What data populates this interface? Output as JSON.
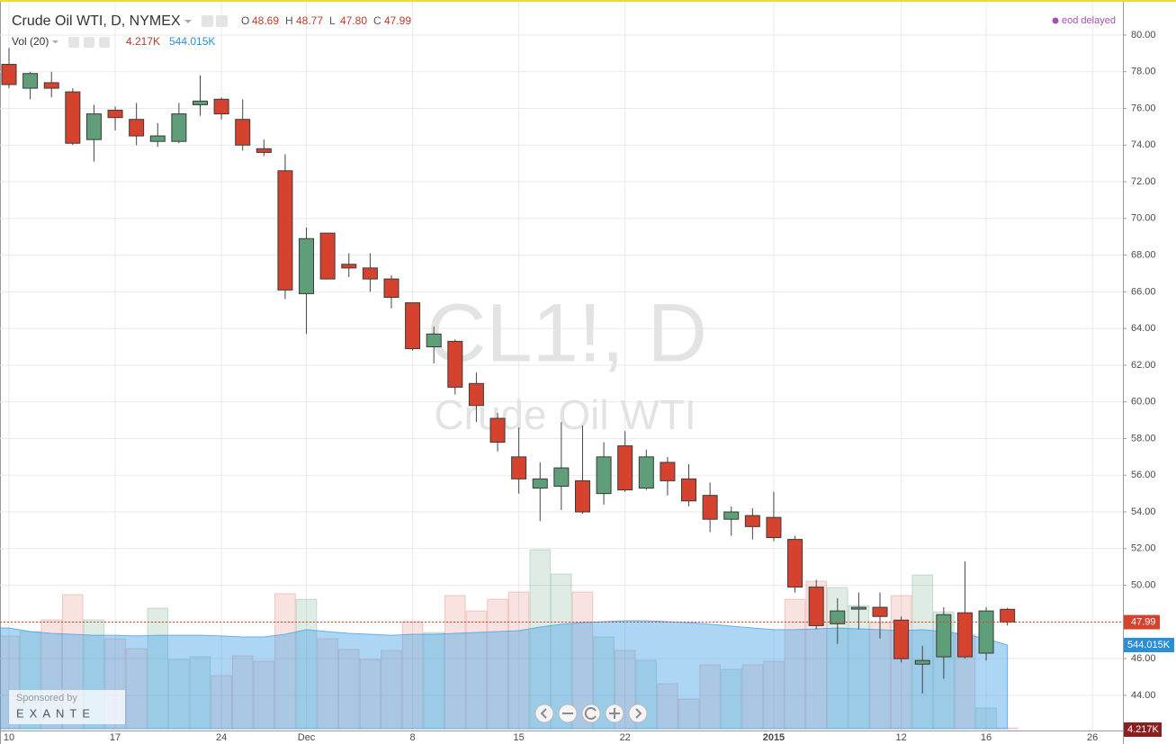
{
  "header": {
    "ohlc": [
      {
        "key": "O",
        "value": "48.69"
      },
      {
        "key": "H",
        "value": "48.77"
      },
      {
        "key": "L",
        "value": "47.80"
      },
      {
        "key": "C",
        "value": "47.99"
      }
    ],
    "status": "eod delayed"
  },
  "watermark": {
    "symbol": "CL1!, D",
    "name": "Crude Oil WTI"
  },
  "sponsor": {
    "label": "Sponsored by",
    "brand": "EXANTE"
  },
  "chart_data": {
    "type": "candlestick",
    "title": "Crude Oil WTI, D, NYMEX",
    "categories": [
      "10",
      null,
      null,
      null,
      null,
      "17",
      null,
      null,
      null,
      null,
      "24",
      null,
      null,
      null,
      "Dec",
      null,
      null,
      null,
      null,
      "8",
      null,
      null,
      null,
      null,
      "15",
      null,
      null,
      null,
      null,
      "22",
      null,
      null,
      null,
      null,
      null,
      null,
      "2015",
      null,
      null,
      null,
      null,
      null,
      "12",
      null,
      null,
      null,
      "16",
      null,
      null,
      null,
      null,
      "26"
    ],
    "open": [
      78.4,
      77.1,
      77.4,
      76.9,
      74.3,
      75.9,
      75.4,
      74.2,
      74.2,
      76.2,
      76.5,
      75.4,
      73.8,
      72.6,
      65.9,
      69.2,
      67.5,
      67.3,
      66.7,
      65.4,
      63.0,
      63.3,
      61.0,
      59.1,
      57.0,
      55.3,
      55.4,
      55.7,
      55.0,
      57.6,
      55.3,
      56.7,
      55.8,
      54.9,
      53.6,
      53.8,
      53.7,
      52.5,
      49.9,
      47.9,
      48.7,
      48.8,
      48.1,
      45.7,
      46.1,
      48.5,
      46.3,
      48.69,
      null,
      null,
      null,
      null
    ],
    "high": [
      79.3,
      78.0,
      78.0,
      77.1,
      76.2,
      76.1,
      76.3,
      75.2,
      76.3,
      77.8,
      76.6,
      76.5,
      74.3,
      73.5,
      69.5,
      69.2,
      68.1,
      68.1,
      66.9,
      65.4,
      64.1,
      63.4,
      61.6,
      59.4,
      58.6,
      56.7,
      58.9,
      58.7,
      57.8,
      58.4,
      57.4,
      57.0,
      56.6,
      55.6,
      54.3,
      54.2,
      55.1,
      52.7,
      50.3,
      49.3,
      49.6,
      49.6,
      48.3,
      46.7,
      48.8,
      51.3,
      48.8,
      48.77,
      null,
      null,
      null,
      null
    ],
    "low": [
      77.1,
      76.5,
      76.6,
      74.0,
      73.1,
      74.8,
      74.0,
      73.9,
      74.1,
      75.6,
      75.4,
      73.7,
      73.4,
      65.6,
      63.7,
      66.7,
      66.8,
      66.0,
      65.1,
      62.8,
      62.1,
      60.4,
      58.9,
      57.3,
      55.0,
      53.5,
      54.1,
      53.9,
      54.4,
      55.1,
      55.2,
      54.9,
      54.3,
      52.9,
      52.7,
      52.5,
      52.4,
      49.6,
      47.6,
      46.8,
      47.6,
      47.1,
      45.8,
      44.1,
      44.9,
      46.0,
      45.9,
      47.8,
      null,
      null,
      null,
      null
    ],
    "close": [
      77.3,
      77.9,
      77.1,
      74.1,
      75.7,
      75.5,
      74.5,
      74.5,
      75.7,
      76.4,
      75.7,
      74.0,
      73.6,
      66.1,
      68.9,
      66.7,
      67.3,
      66.7,
      65.7,
      62.9,
      63.7,
      60.8,
      59.8,
      57.8,
      55.8,
      55.8,
      56.4,
      54.0,
      57.0,
      55.2,
      57.0,
      55.7,
      54.6,
      53.6,
      54.0,
      53.2,
      52.6,
      49.9,
      47.8,
      48.6,
      48.8,
      48.3,
      46.0,
      45.9,
      48.4,
      46.1,
      48.6,
      47.99,
      null,
      null,
      null,
      null
    ],
    "up_color": "#5e9e78",
    "down_color": "#d5432e",
    "volume": {
      "name": "Vol (20)",
      "values": [
        603000,
        632000,
        708000,
        872000,
        708000,
        585000,
        521000,
        784000,
        450000,
        468000,
        345000,
        474000,
        439000,
        878000,
        842000,
        585000,
        515000,
        450000,
        509000,
        696000,
        626000,
        866000,
        766000,
        842000,
        889000,
        1164000,
        1006000,
        889000,
        597000,
        509000,
        445000,
        293000,
        193000,
        415000,
        386000,
        415000,
        439000,
        842000,
        959000,
        918000,
        801000,
        690000,
        866000,
        1000000,
        760000,
        614000,
        135000,
        4217,
        null,
        null,
        null,
        null
      ],
      "value_labels": [
        null,
        null,
        null,
        null,
        null,
        null,
        null,
        null,
        null,
        null,
        null,
        null,
        null,
        null,
        null,
        null,
        null,
        null,
        null,
        null,
        null,
        null,
        null,
        null,
        null,
        null,
        null,
        null,
        null,
        null,
        null,
        null,
        null,
        null,
        null,
        null,
        null,
        null,
        null,
        null,
        null,
        null,
        null,
        null,
        null,
        null,
        null,
        "4.217K",
        null,
        null,
        null,
        null
      ]
    },
    "volume_ma": {
      "color": "#4aa3e8",
      "values": [
        655000,
        632000,
        620000,
        614000,
        608000,
        608000,
        603000,
        608000,
        608000,
        608000,
        603000,
        597000,
        597000,
        614000,
        644000,
        632000,
        620000,
        614000,
        608000,
        614000,
        614000,
        620000,
        626000,
        632000,
        638000,
        661000,
        679000,
        690000,
        696000,
        702000,
        702000,
        696000,
        690000,
        679000,
        667000,
        655000,
        644000,
        644000,
        649000,
        655000,
        649000,
        644000,
        638000,
        644000,
        632000,
        614000,
        585000,
        544015,
        null,
        null,
        null,
        null
      ],
      "value_labels": [
        null,
        null,
        null,
        null,
        null,
        null,
        null,
        null,
        null,
        null,
        null,
        null,
        null,
        null,
        null,
        null,
        null,
        null,
        null,
        null,
        null,
        null,
        null,
        null,
        null,
        null,
        null,
        null,
        null,
        null,
        null,
        null,
        null,
        null,
        null,
        null,
        null,
        null,
        null,
        null,
        null,
        null,
        null,
        null,
        null,
        null,
        null,
        "544.015K",
        null,
        null,
        null,
        null
      ]
    },
    "ylim": [
      42.18,
      81.91
    ],
    "yticks": [
      {
        "value": 44,
        "label": "44.00"
      },
      {
        "value": 46,
        "label": "46.00"
      },
      {
        "value": 48,
        "label": "48.00"
      },
      {
        "value": 50,
        "label": "50.00"
      },
      {
        "value": 52,
        "label": "52.00"
      },
      {
        "value": 54,
        "label": "54.00"
      },
      {
        "value": 56,
        "label": "56.00"
      },
      {
        "value": 58,
        "label": "58.00"
      },
      {
        "value": 60,
        "label": "60.00"
      },
      {
        "value": 62,
        "label": "62.00"
      },
      {
        "value": 64,
        "label": "64.00"
      },
      {
        "value": 66,
        "label": "66.00"
      },
      {
        "value": 68,
        "label": "68.00"
      },
      {
        "value": 70,
        "label": "70.00"
      },
      {
        "value": 72,
        "label": "72.00"
      },
      {
        "value": 74,
        "label": "74.00"
      },
      {
        "value": 76,
        "label": "76.00"
      },
      {
        "value": 78,
        "label": "78.00"
      },
      {
        "value": 80,
        "label": "80.00"
      }
    ],
    "grid": true
  }
}
